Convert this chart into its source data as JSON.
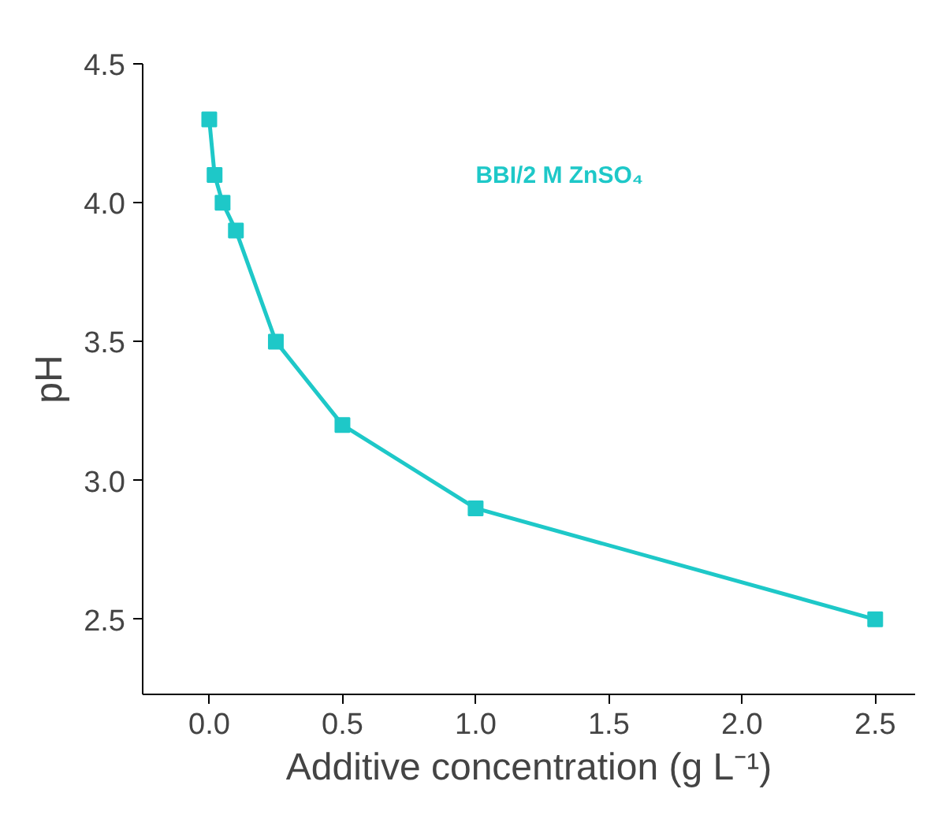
{
  "chart_data": {
    "type": "line",
    "xlabel": "Additive concentration (g L⁻¹)",
    "ylabel": "pH",
    "x": [
      0,
      0.02,
      0.05,
      0.1,
      0.25,
      0.5,
      1.0,
      2.5
    ],
    "series": [
      {
        "color": "#1ec8c8",
        "values": [
          4.3,
          4.1,
          4.0,
          3.9,
          3.5,
          3.2,
          2.9,
          2.5
        ]
      }
    ],
    "annotations": [
      "BBI/2 M ZnSO₄"
    ],
    "xlim": [
      -0.25,
      2.65
    ],
    "ylim": [
      2.23,
      4.5
    ],
    "xticks": [
      {
        "value": 0,
        "label": "0.0"
      },
      0.5,
      {
        "value": 1,
        "label": "1.0"
      },
      1.5,
      {
        "value": 2,
        "label": "2.0"
      },
      2.5
    ],
    "yticks": [
      2.5,
      {
        "value": 3,
        "label": "3.0"
      },
      3.5,
      {
        "value": 4,
        "label": "4.0"
      },
      4.5
    ],
    "grid": false,
    "marker": "square",
    "line_style": "solid"
  }
}
